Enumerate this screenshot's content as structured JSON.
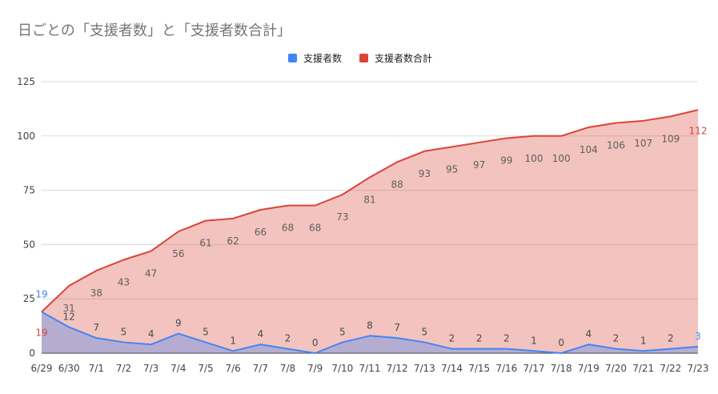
{
  "chart": {
    "title": "日ごとの「支援者数」と「支援者数合計」"
  },
  "chart_data": {
    "type": "area",
    "title": "日ごとの「支援者数」と「支援者数合計」",
    "x": [
      "6/29",
      "6/30",
      "7/1",
      "7/2",
      "7/3",
      "7/4",
      "7/5",
      "7/6",
      "7/7",
      "7/8",
      "7/9",
      "7/10",
      "7/11",
      "7/12",
      "7/13",
      "7/14",
      "7/15",
      "7/16",
      "7/17",
      "7/18",
      "7/19",
      "7/20",
      "7/21",
      "7/22",
      "7/23"
    ],
    "series": [
      {
        "name": "支援者数",
        "color": "#4285f4",
        "values": [
          19,
          12,
          7,
          5,
          4,
          9,
          5,
          1,
          4,
          2,
          0,
          5,
          8,
          7,
          5,
          2,
          2,
          2,
          1,
          0,
          4,
          2,
          1,
          2,
          3
        ]
      },
      {
        "name": "支援者数合計",
        "color": "#db4437",
        "values": [
          19,
          31,
          38,
          43,
          47,
          56,
          61,
          62,
          66,
          68,
          68,
          73,
          81,
          88,
          93,
          95,
          97,
          99,
          100,
          100,
          104,
          106,
          107,
          109,
          112
        ]
      }
    ],
    "ylim": [
      0,
      125
    ],
    "yticks": [
      0,
      25,
      50,
      75,
      100,
      125
    ],
    "grid": true,
    "legend_position": "top"
  }
}
